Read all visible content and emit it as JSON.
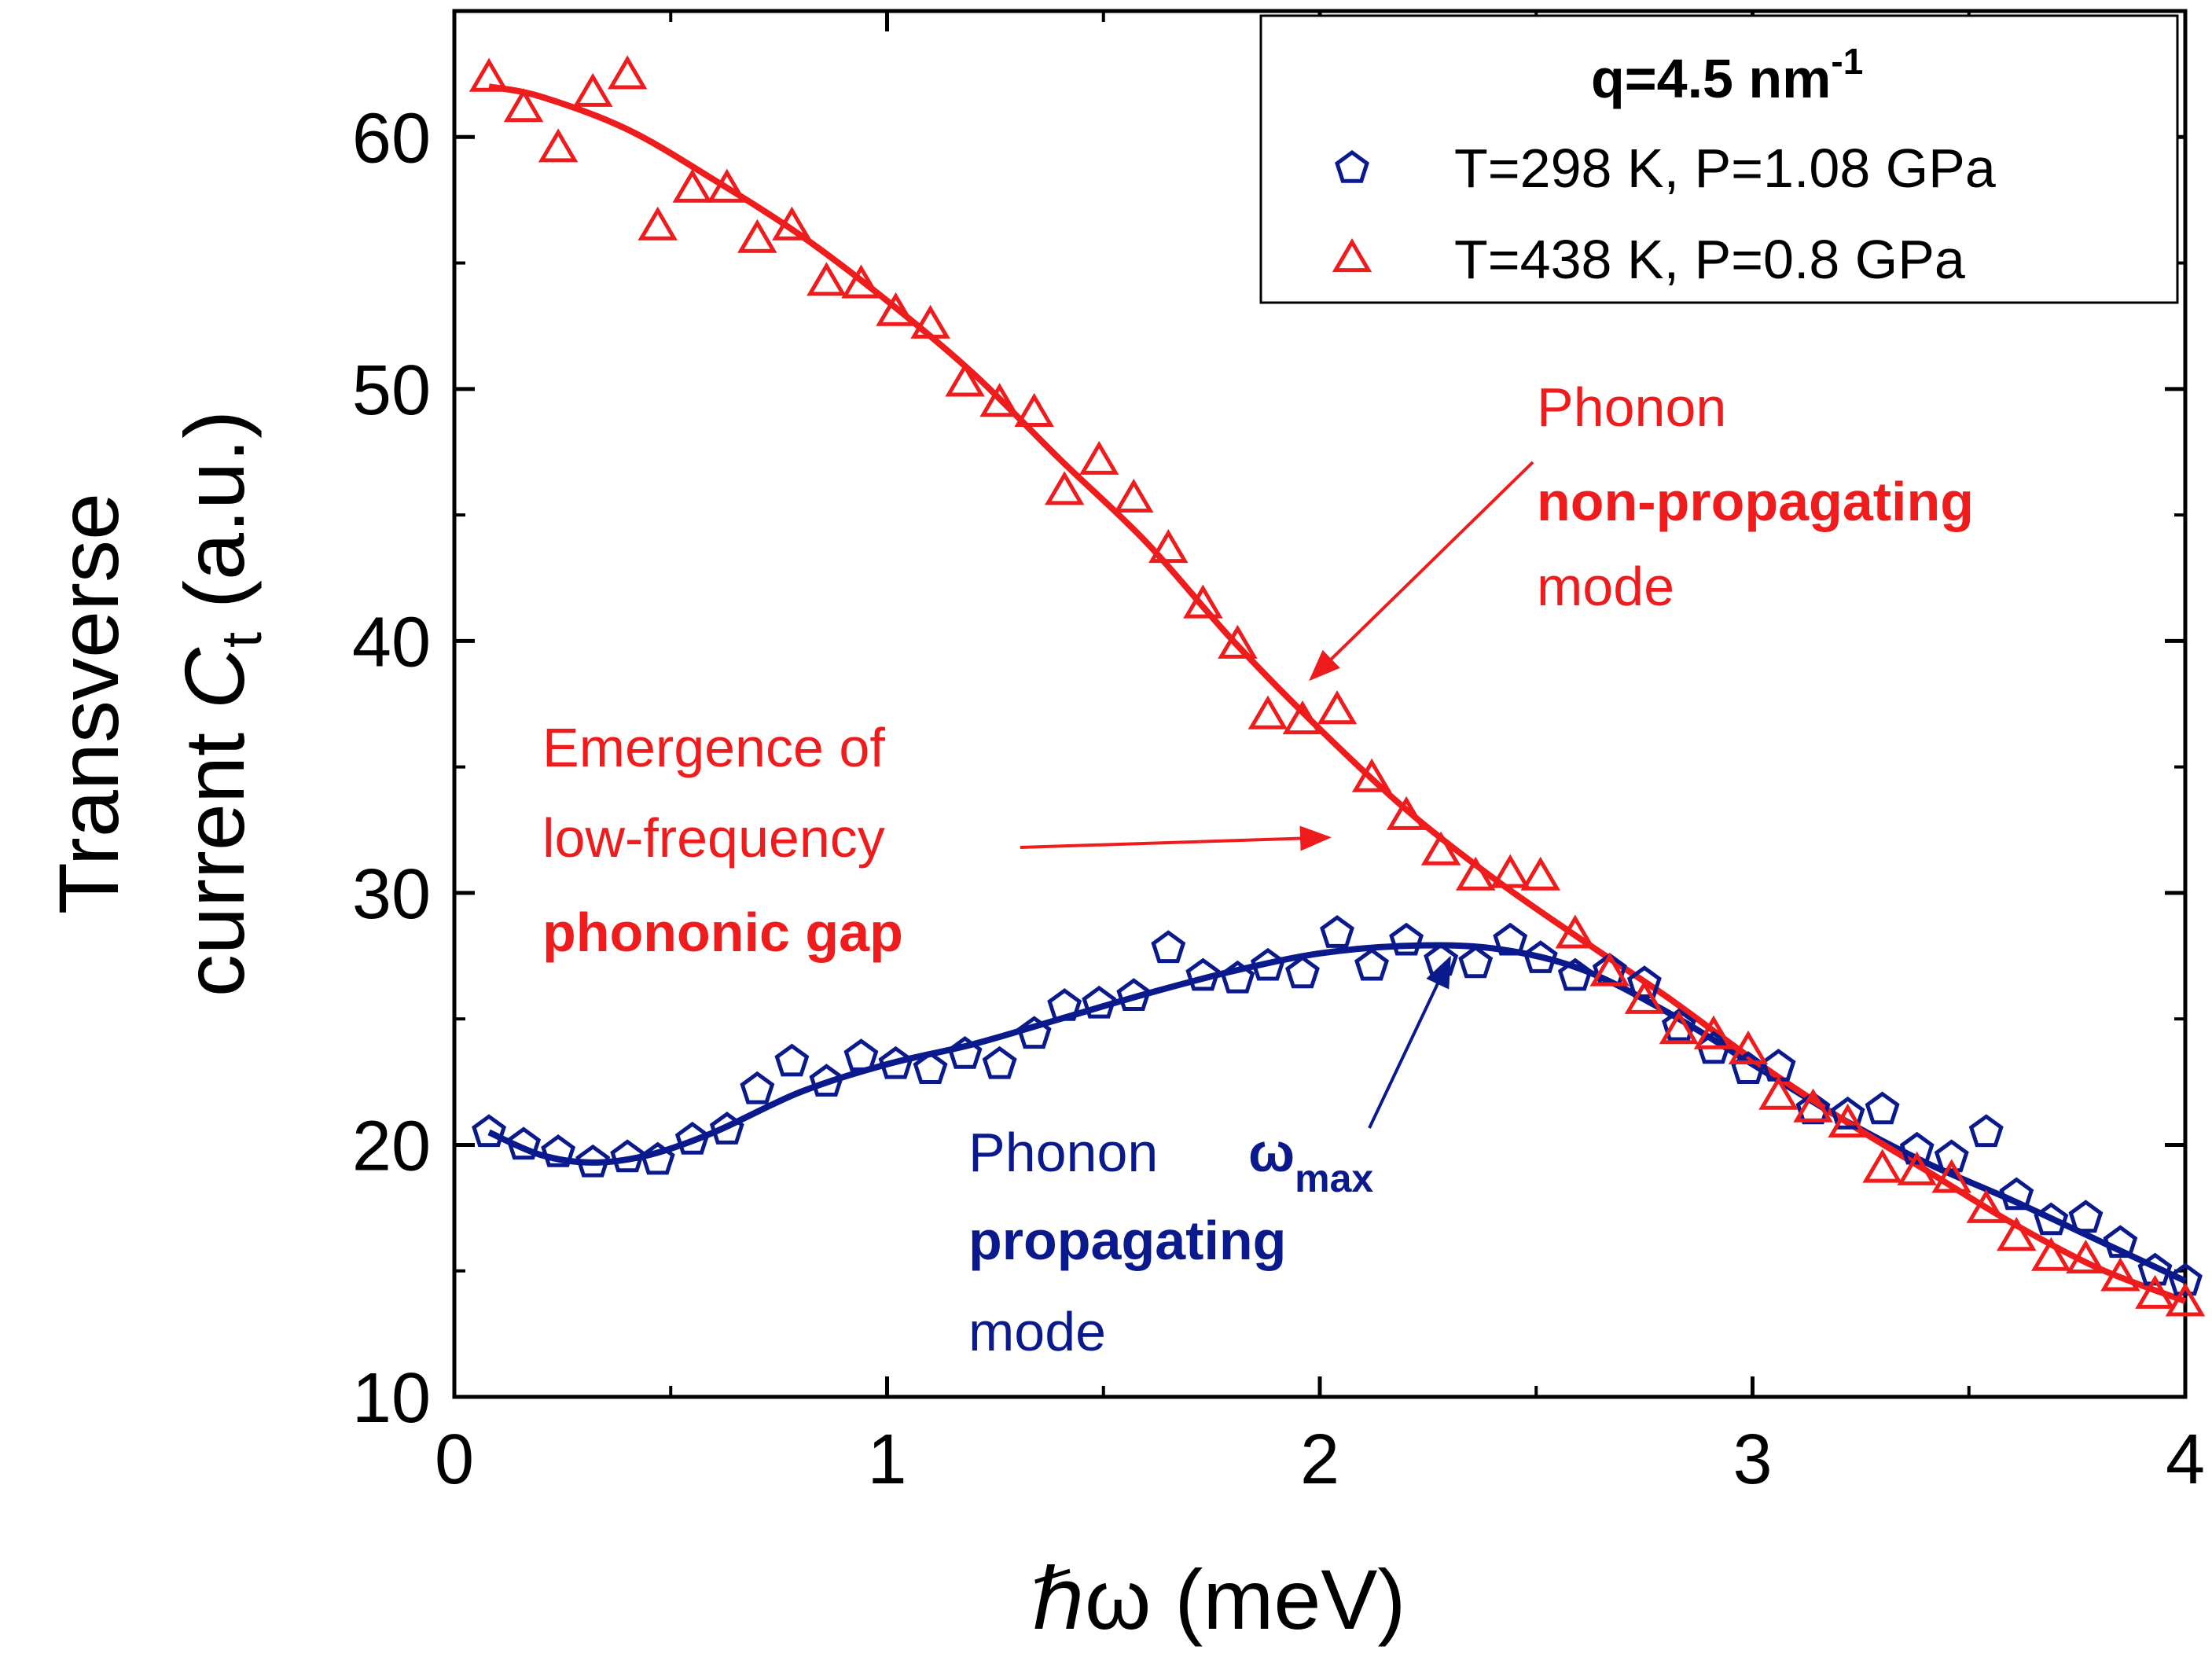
{
  "chart_data": {
    "type": "scatter",
    "xlabel": "ℏω (meV)",
    "ylabel_line1": "Transverse",
    "ylabel_line2_prefix": "current ",
    "ylabel_symbol": "C",
    "ylabel_subscript": "t",
    "ylabel_suffix": " (a.u.)",
    "xlim": [
      0,
      4
    ],
    "ylim": [
      10,
      65
    ],
    "xticks": [
      0,
      1,
      2,
      3,
      4
    ],
    "yticks": [
      10,
      20,
      30,
      40,
      50,
      60
    ],
    "legend": {
      "title_main": "q=4.5 nm",
      "title_sup": "-1",
      "position": "top-right"
    },
    "series": [
      {
        "name": "T=298 K, P=1.08 GPa",
        "marker": "pentagon",
        "color": "#0a1a8c",
        "x": [
          0.08,
          0.16,
          0.24,
          0.32,
          0.4,
          0.47,
          0.55,
          0.63,
          0.7,
          0.78,
          0.86,
          0.94,
          1.02,
          1.1,
          1.18,
          1.26,
          1.34,
          1.41,
          1.49,
          1.57,
          1.65,
          1.73,
          1.81,
          1.88,
          1.96,
          2.04,
          2.12,
          2.2,
          2.28,
          2.36,
          2.44,
          2.51,
          2.59,
          2.67,
          2.75,
          2.83,
          2.91,
          2.99,
          3.06,
          3.14,
          3.22,
          3.3,
          3.38,
          3.46,
          3.54,
          3.61,
          3.69,
          3.77,
          3.85,
          3.93,
          4.0
        ],
        "y": [
          20.5,
          20.0,
          19.7,
          19.3,
          19.5,
          19.4,
          20.2,
          20.6,
          22.2,
          23.3,
          22.5,
          23.5,
          23.2,
          23.0,
          23.6,
          23.2,
          24.4,
          25.5,
          25.6,
          25.9,
          27.8,
          26.7,
          26.6,
          27.1,
          26.8,
          28.4,
          27.1,
          28.1,
          27.3,
          27.2,
          28.1,
          27.4,
          26.7,
          26.9,
          26.4,
          24.7,
          23.8,
          23.0,
          23.1,
          21.4,
          21.2,
          21.4,
          19.8,
          19.5,
          20.5,
          18.0,
          17.0,
          17.1,
          16.1,
          15.0,
          14.6
        ]
      },
      {
        "name": "T=438 K, P=0.8 GPa",
        "marker": "triangle",
        "color": "#ee1c1c",
        "x": [
          0.08,
          0.16,
          0.24,
          0.32,
          0.4,
          0.47,
          0.55,
          0.63,
          0.7,
          0.78,
          0.86,
          0.94,
          1.02,
          1.1,
          1.18,
          1.26,
          1.34,
          1.41,
          1.49,
          1.57,
          1.65,
          1.73,
          1.81,
          1.88,
          1.96,
          2.04,
          2.12,
          2.2,
          2.28,
          2.36,
          2.44,
          2.51,
          2.59,
          2.67,
          2.75,
          2.83,
          2.91,
          2.99,
          3.06,
          3.14,
          3.22,
          3.3,
          3.38,
          3.46,
          3.54,
          3.61,
          3.69,
          3.77,
          3.85,
          3.93,
          4.0
        ],
        "y": [
          62.3,
          61.1,
          59.5,
          61.7,
          62.4,
          56.4,
          57.9,
          57.9,
          55.9,
          56.4,
          54.2,
          54.1,
          53.0,
          52.5,
          50.2,
          49.4,
          49.0,
          45.9,
          47.1,
          45.6,
          43.6,
          41.4,
          39.8,
          37.0,
          36.8,
          37.2,
          34.5,
          33.0,
          31.6,
          30.6,
          30.7,
          30.6,
          28.3,
          26.8,
          25.7,
          24.5,
          24.3,
          23.7,
          21.9,
          21.4,
          20.8,
          19.0,
          18.9,
          18.6,
          17.4,
          16.3,
          15.5,
          15.4,
          14.7,
          14.0,
          13.7
        ]
      }
    ],
    "fits": [
      {
        "name": "fit-298K",
        "color": "#0a1a8c",
        "x": [
          0.08,
          0.2,
          0.32,
          0.45,
          0.6,
          0.8,
          1.0,
          1.2,
          1.4,
          1.6,
          1.8,
          2.0,
          2.2,
          2.4,
          2.6,
          2.8,
          3.0,
          3.2,
          3.4,
          3.6,
          3.8,
          4.0
        ],
        "y": [
          20.5,
          19.6,
          19.3,
          19.6,
          20.5,
          22.1,
          23.2,
          24.0,
          25.0,
          26.0,
          26.9,
          27.6,
          27.9,
          27.8,
          27.0,
          25.3,
          23.2,
          21.1,
          19.3,
          17.8,
          16.2,
          14.6
        ]
      },
      {
        "name": "fit-438K",
        "color": "#ee1c1c",
        "x": [
          0.08,
          0.2,
          0.4,
          0.6,
          0.8,
          1.0,
          1.2,
          1.4,
          1.6,
          1.8,
          2.0,
          2.2,
          2.4,
          2.6,
          2.8,
          3.0,
          3.2,
          3.4,
          3.6,
          3.8,
          4.0
        ],
        "y": [
          62.0,
          61.6,
          60.3,
          58.3,
          56.1,
          53.5,
          50.6,
          47.2,
          43.9,
          40.0,
          36.5,
          33.3,
          30.6,
          28.2,
          25.9,
          23.4,
          21.1,
          19.0,
          16.9,
          15.1,
          13.8
        ]
      }
    ],
    "annotations": {
      "nonprop": {
        "line1": "Phonon",
        "line2": "non-propagating",
        "line3": "mode",
        "color": "#ee1c1c",
        "arrow_to": [
          1.98,
          38.5
        ]
      },
      "gap": {
        "line1": "Emergence of",
        "line2": "low-frequency",
        "line3": "phononic gap",
        "color": "#ee1c1c",
        "arrow_to": [
          2.02,
          32.2
        ]
      },
      "prop": {
        "line1": "Phonon",
        "omega": "ω",
        "omega_sub": "max",
        "line2": "propagating",
        "line3": "mode",
        "color": "#0a1a8c",
        "arrow_to": [
          2.3,
          27.4
        ]
      }
    }
  }
}
